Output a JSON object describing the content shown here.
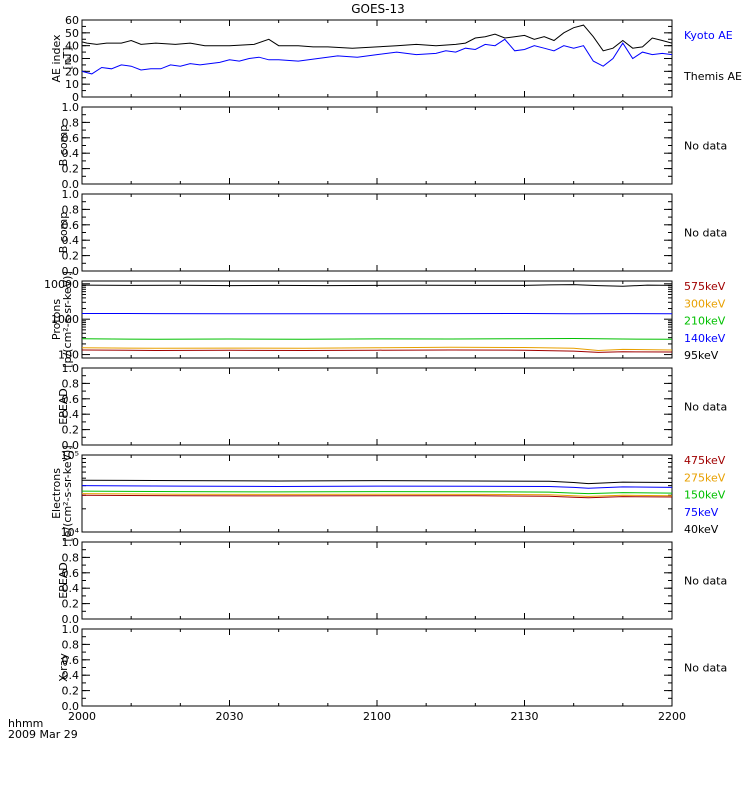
{
  "title": "GOES-13",
  "time_axis": {
    "unit_label": "hhmm",
    "date_label": "2009 Mar 29",
    "ticks": [
      "2000",
      "2030",
      "2100",
      "2130",
      "2200"
    ],
    "tick_minutes": [
      0,
      30,
      60,
      90,
      120
    ]
  },
  "chart_data": [
    {
      "type": "line",
      "ylabel": "AE index [nT]",
      "ylim": [
        0,
        60
      ],
      "yticks": [
        "0",
        "10",
        "20",
        "30",
        "40",
        "50",
        "60"
      ],
      "ytick_values": [
        0,
        10,
        20,
        30,
        40,
        50,
        60
      ],
      "minor_yticks": [
        0,
        5,
        10,
        15,
        20,
        25,
        30,
        35,
        40,
        45,
        50,
        55,
        60
      ],
      "legend": [
        "Kyoto AE",
        "Themis AE"
      ],
      "legend_colors": [
        "#0000ff",
        "#000000"
      ],
      "series": [
        {
          "name": "Themis AE",
          "color": "#000000",
          "x": [
            0,
            1,
            3,
            5,
            8,
            10,
            12,
            15,
            19,
            22,
            25,
            30,
            35,
            38,
            40,
            44,
            47,
            50,
            55,
            60,
            64,
            68,
            72,
            76,
            78,
            80,
            82,
            84,
            86,
            88,
            90,
            92,
            94,
            96,
            98,
            100,
            102,
            104,
            106,
            108,
            110,
            112,
            114,
            116,
            118,
            120
          ],
          "values": [
            43,
            42,
            41,
            42,
            42,
            44,
            41,
            42,
            41,
            42,
            40,
            40,
            41,
            45,
            40,
            40,
            39,
            39,
            38,
            39,
            40,
            41,
            40,
            41,
            42,
            46,
            47,
            49,
            46,
            47,
            48,
            45,
            47,
            44,
            50,
            54,
            56,
            47,
            36,
            38,
            44,
            38,
            39,
            46,
            44,
            42
          ]
        },
        {
          "name": "Kyoto AE",
          "color": "#0000ff",
          "x": [
            0,
            2,
            4,
            6,
            8,
            10,
            12,
            14,
            16,
            18,
            20,
            22,
            24,
            26,
            28,
            30,
            32,
            34,
            36,
            38,
            40,
            44,
            48,
            52,
            56,
            60,
            64,
            68,
            72,
            74,
            76,
            78,
            80,
            82,
            84,
            86,
            88,
            90,
            92,
            94,
            96,
            98,
            100,
            102,
            104,
            106,
            108,
            110,
            112,
            114,
            116,
            118,
            120
          ],
          "values": [
            20,
            18,
            23,
            22,
            25,
            24,
            21,
            22,
            22,
            25,
            24,
            26,
            25,
            26,
            27,
            29,
            28,
            30,
            31,
            29,
            29,
            28,
            30,
            32,
            31,
            33,
            35,
            33,
            34,
            36,
            35,
            38,
            37,
            41,
            40,
            45,
            36,
            37,
            40,
            38,
            36,
            40,
            38,
            40,
            28,
            24,
            30,
            42,
            30,
            35,
            33,
            34,
            33
          ]
        }
      ]
    },
    {
      "type": "line",
      "ylabel": "B comp",
      "ylim": [
        0,
        1
      ],
      "yticks": [
        "0.0",
        "0.2",
        "0.4",
        "0.6",
        "0.8",
        "1.0"
      ],
      "ytick_values": [
        0,
        0.2,
        0.4,
        0.6,
        0.8,
        1.0
      ],
      "minor_yticks": [
        0,
        0.1,
        0.2,
        0.3,
        0.4,
        0.5,
        0.6,
        0.7,
        0.8,
        0.9,
        1.0
      ],
      "legend": [
        "No data"
      ],
      "legend_colors": [
        "#000000"
      ],
      "series": []
    },
    {
      "type": "line",
      "ylabel": "B comp",
      "ylim": [
        0,
        1
      ],
      "yticks": [
        "0.0",
        "0.2",
        "0.4",
        "0.6",
        "0.8",
        "1.0"
      ],
      "ytick_values": [
        0,
        0.2,
        0.4,
        0.6,
        0.8,
        1.0
      ],
      "minor_yticks": [
        0,
        0.1,
        0.2,
        0.3,
        0.4,
        0.5,
        0.6,
        0.7,
        0.8,
        0.9,
        1.0
      ],
      "legend": [
        "No data"
      ],
      "legend_colors": [
        "#000000"
      ],
      "series": []
    },
    {
      "type": "line",
      "log_scale": true,
      "ylabel": "Protons [p/(cm²-s-sr-keV)]",
      "ylim": [
        80,
        12000
      ],
      "yticks": [
        "100",
        "1000",
        "10000"
      ],
      "ytick_values": [
        100,
        1000,
        10000
      ],
      "minor_yticks": [
        200,
        300,
        400,
        500,
        600,
        700,
        800,
        900,
        2000,
        3000,
        4000,
        5000,
        6000,
        7000,
        8000,
        9000
      ],
      "legend": [
        "575keV",
        "300keV",
        "210keV",
        "140keV",
        "95keV"
      ],
      "legend_colors": [
        "#a00000",
        "#e8a000",
        "#00c000",
        "#0000ff",
        "#000000"
      ],
      "series": [
        {
          "name": "95keV",
          "color": "#000000",
          "x": [
            0,
            10,
            20,
            30,
            40,
            50,
            60,
            70,
            80,
            90,
            95,
            100,
            105,
            110,
            115,
            120
          ],
          "values": [
            9200,
            9000,
            9100,
            8900,
            9000,
            8900,
            9000,
            9100,
            9000,
            9000,
            9300,
            9500,
            8900,
            8500,
            9200,
            9000
          ]
        },
        {
          "name": "140keV",
          "color": "#0000ff",
          "x": [
            0,
            15,
            30,
            45,
            60,
            75,
            90,
            100,
            110,
            120
          ],
          "values": [
            1450,
            1440,
            1430,
            1420,
            1430,
            1440,
            1450,
            1430,
            1440,
            1420
          ]
        },
        {
          "name": "210keV",
          "color": "#00c000",
          "x": [
            0,
            15,
            30,
            45,
            60,
            75,
            90,
            100,
            110,
            120
          ],
          "values": [
            280,
            270,
            275,
            272,
            278,
            275,
            280,
            285,
            275,
            270
          ]
        },
        {
          "name": "300keV",
          "color": "#e8a000",
          "x": [
            0,
            15,
            30,
            45,
            60,
            75,
            90,
            100,
            105,
            110,
            120
          ],
          "values": [
            155,
            150,
            152,
            150,
            155,
            160,
            158,
            150,
            130,
            140,
            135
          ]
        },
        {
          "name": "575keV",
          "color": "#a00000",
          "x": [
            0,
            15,
            30,
            45,
            60,
            75,
            90,
            100,
            105,
            110,
            120
          ],
          "values": [
            135,
            130,
            132,
            130,
            133,
            135,
            133,
            125,
            115,
            120,
            118
          ]
        }
      ]
    },
    {
      "type": "line",
      "ylabel": "EPEAD",
      "ylim": [
        0,
        1
      ],
      "yticks": [
        "0.0",
        "0.2",
        "0.4",
        "0.6",
        "0.8",
        "1.0"
      ],
      "ytick_values": [
        0,
        0.2,
        0.4,
        0.6,
        0.8,
        1.0
      ],
      "minor_yticks": [
        0,
        0.1,
        0.2,
        0.3,
        0.4,
        0.5,
        0.6,
        0.7,
        0.8,
        0.9,
        1.0
      ],
      "legend": [
        "No data"
      ],
      "legend_colors": [
        "#000000"
      ],
      "series": []
    },
    {
      "type": "line",
      "log_scale": true,
      "ylabel": "Electrons [e/(cm²-s-sr-keV)]",
      "ylim": [
        10000,
        100000
      ],
      "yticks": [
        "10⁴",
        "10⁵"
      ],
      "ytick_values": [
        10000,
        100000
      ],
      "minor_yticks": [
        20000,
        30000,
        40000,
        50000,
        60000,
        70000,
        80000,
        90000
      ],
      "legend": [
        "475keV",
        "275keV",
        "150keV",
        "75keV",
        "40keV"
      ],
      "legend_colors": [
        "#a00000",
        "#e8a000",
        "#00c000",
        "#0000ff",
        "#000000"
      ],
      "series": [
        {
          "name": "40keV",
          "color": "#000000",
          "x": [
            0,
            20,
            40,
            60,
            80,
            95,
            100,
            103,
            110,
            120
          ],
          "values": [
            47000,
            46500,
            46000,
            46500,
            46000,
            45500,
            44000,
            42500,
            44500,
            44000
          ]
        },
        {
          "name": "75keV",
          "color": "#0000ff",
          "x": [
            0,
            20,
            40,
            60,
            80,
            95,
            100,
            103,
            110,
            120
          ],
          "values": [
            40000,
            39500,
            39000,
            39500,
            39200,
            39000,
            38000,
            37000,
            38500,
            38000
          ]
        },
        {
          "name": "150keV",
          "color": "#00c000",
          "x": [
            0,
            20,
            40,
            60,
            80,
            95,
            100,
            103,
            110,
            120
          ],
          "values": [
            34000,
            33500,
            33200,
            33500,
            33300,
            33000,
            32000,
            31500,
            32500,
            32000
          ]
        },
        {
          "name": "275keV",
          "color": "#e8a000",
          "x": [
            0,
            20,
            40,
            60,
            80,
            95,
            100,
            103,
            110,
            120
          ],
          "values": [
            31500,
            31000,
            30800,
            31000,
            30800,
            30500,
            29500,
            29000,
            30000,
            29500
          ]
        },
        {
          "name": "475keV",
          "color": "#a00000",
          "x": [
            0,
            20,
            40,
            60,
            80,
            95,
            100,
            103,
            110,
            120
          ],
          "values": [
            30000,
            29600,
            29400,
            29600,
            29500,
            29200,
            28200,
            27800,
            28800,
            28500
          ]
        }
      ]
    },
    {
      "type": "line",
      "ylabel": "EPEAD",
      "ylim": [
        0,
        1
      ],
      "yticks": [
        "0.0",
        "0.2",
        "0.4",
        "0.6",
        "0.8",
        "1.0"
      ],
      "ytick_values": [
        0,
        0.2,
        0.4,
        0.6,
        0.8,
        1.0
      ],
      "minor_yticks": [
        0,
        0.1,
        0.2,
        0.3,
        0.4,
        0.5,
        0.6,
        0.7,
        0.8,
        0.9,
        1.0
      ],
      "legend": [
        "No data"
      ],
      "legend_colors": [
        "#000000"
      ],
      "series": []
    },
    {
      "type": "line",
      "ylabel": "X-ray",
      "ylim": [
        0,
        1
      ],
      "yticks": [
        "0.0",
        "0.2",
        "0.4",
        "0.6",
        "0.8",
        "1.0"
      ],
      "ytick_values": [
        0,
        0.2,
        0.4,
        0.6,
        0.8,
        1.0
      ],
      "minor_yticks": [
        0,
        0.1,
        0.2,
        0.3,
        0.4,
        0.5,
        0.6,
        0.7,
        0.8,
        0.9,
        1.0
      ],
      "legend": [
        "No data"
      ],
      "legend_colors": [
        "#000000"
      ],
      "series": []
    }
  ]
}
